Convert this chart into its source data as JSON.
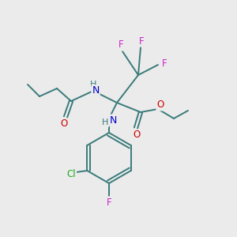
{
  "background_color": "#ebebeb",
  "bond_color": "#3a7a7a",
  "atom_colors": {
    "N": "#0000cc",
    "O": "#cc0000",
    "F": "#cc22cc",
    "Cl": "#22aa22",
    "H": "#3a7a7a"
  },
  "figsize": [
    3.0,
    3.0
  ],
  "dpi": 100
}
